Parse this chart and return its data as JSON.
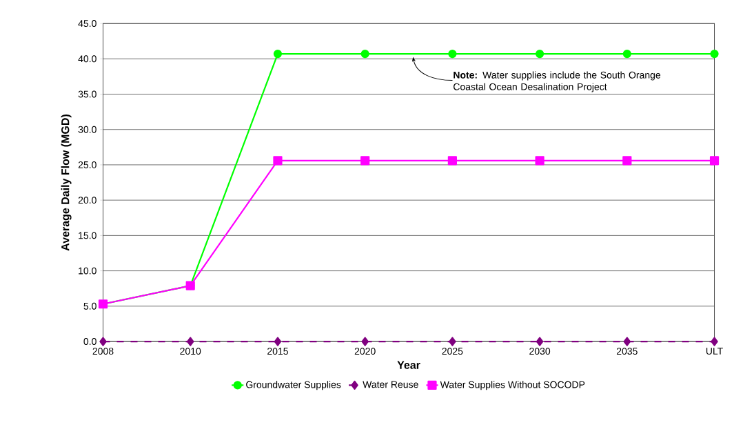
{
  "chart_data": {
    "type": "line",
    "xlabel": "Year",
    "ylabel": "Average Daily Flow (MGD)",
    "categories": [
      "2008",
      "2010",
      "2015",
      "2020",
      "2025",
      "2030",
      "2035",
      "ULT"
    ],
    "series": [
      {
        "name": "Groundwater Supplies",
        "color": "#00ff00",
        "marker": "circle",
        "line_style": "solid",
        "values": [
          5.3,
          7.9,
          40.7,
          40.7,
          40.7,
          40.7,
          40.7,
          40.7
        ]
      },
      {
        "name": "Water Reuse",
        "color": "#800080",
        "marker": "diamond",
        "line_style": "dashed",
        "values": [
          0.0,
          0.0,
          0.0,
          0.0,
          0.0,
          0.0,
          0.0,
          0.0
        ]
      },
      {
        "name": "Water Supplies Without SOCODP",
        "color": "#ff00ff",
        "marker": "square",
        "line_style": "solid",
        "values": [
          5.3,
          7.9,
          25.6,
          25.6,
          25.6,
          25.6,
          25.6,
          25.6
        ]
      }
    ],
    "ylim": [
      0,
      45
    ],
    "yticks": [
      {
        "value": 0,
        "label": "0.0"
      },
      {
        "value": 5,
        "label": "5.0"
      },
      {
        "value": 10,
        "label": "10.0"
      },
      {
        "value": 15,
        "label": "15.0"
      },
      {
        "value": 20,
        "label": "20.0"
      },
      {
        "value": 25,
        "label": "25.0"
      },
      {
        "value": 30,
        "label": "30.0"
      },
      {
        "value": 35,
        "label": "35.0"
      },
      {
        "value": 40,
        "label": "40.0"
      },
      {
        "value": 45,
        "label": "45.0"
      }
    ],
    "grid": "y",
    "legend": "bottom",
    "annotations": [
      "**Note:** Water supplies include the South Orange Coastal Ocean Desalination Project"
    ]
  }
}
